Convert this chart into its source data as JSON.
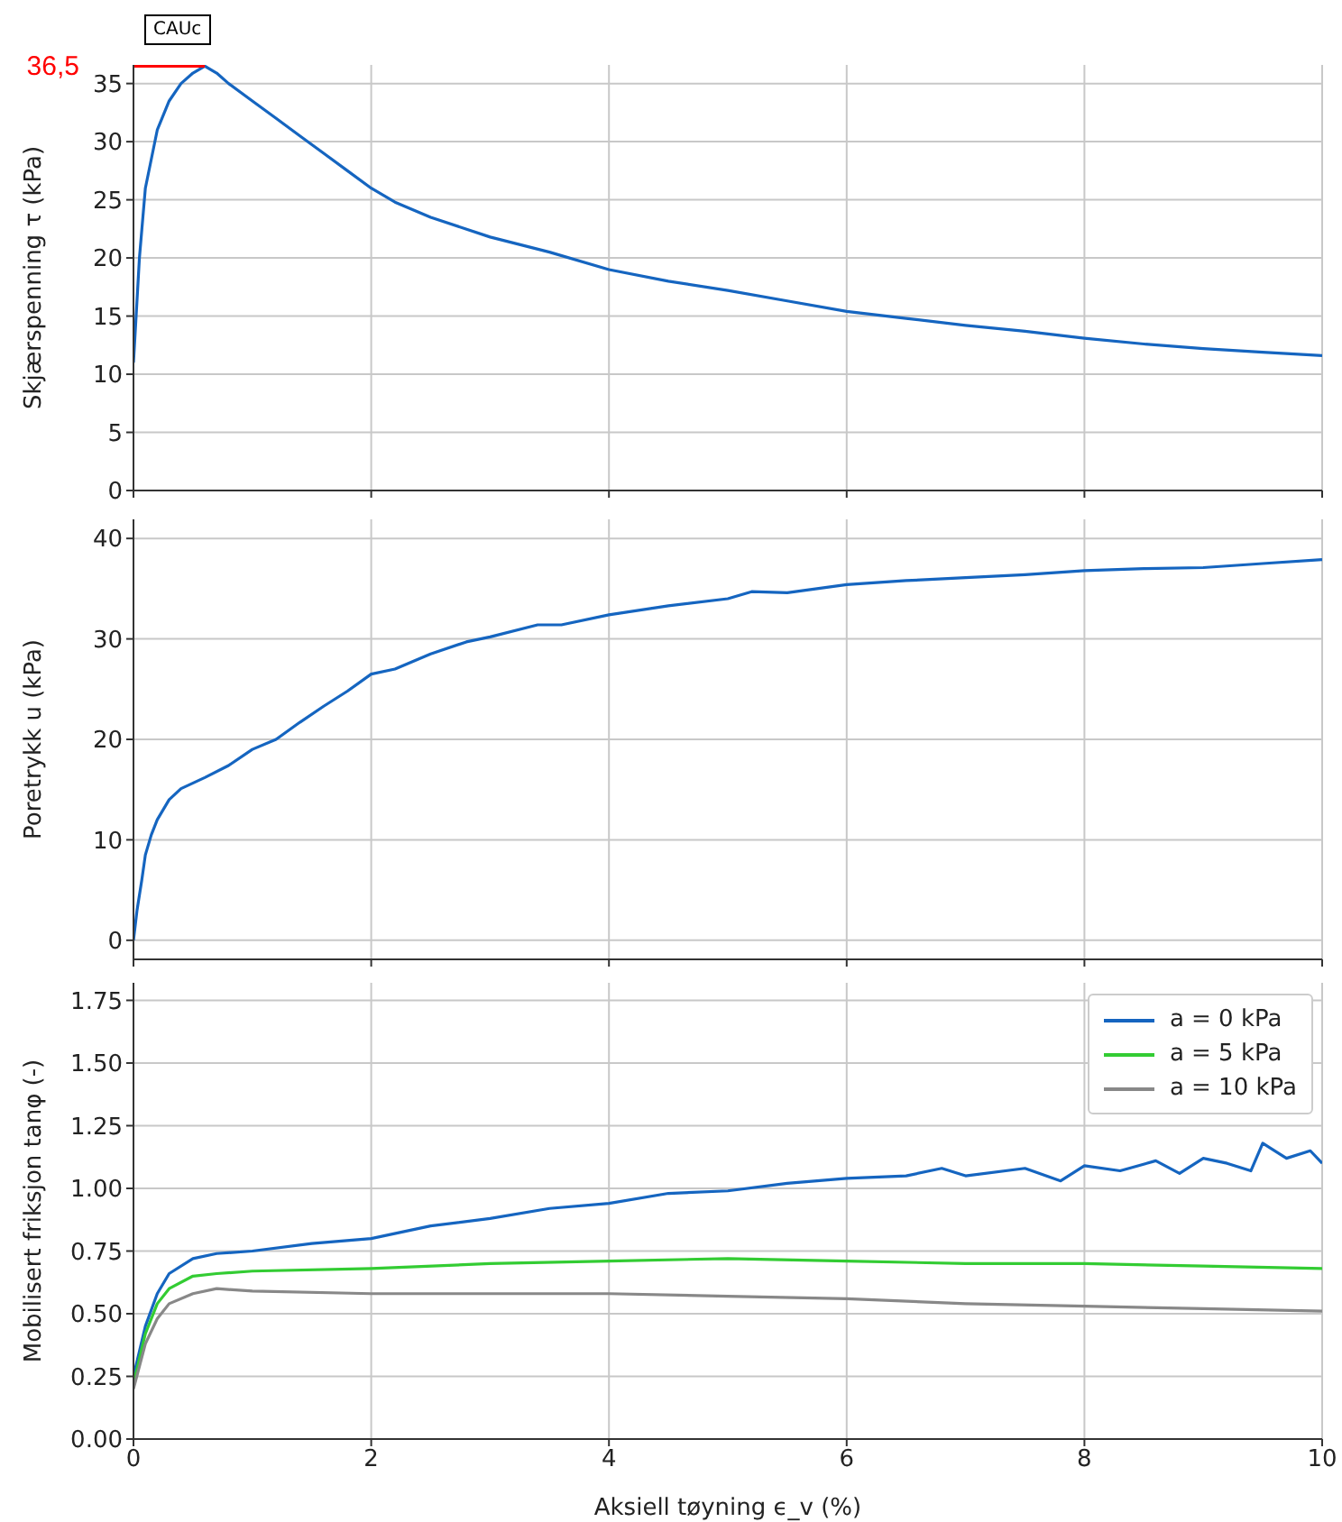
{
  "chart_data": [
    {
      "type": "line",
      "title": "CAUc",
      "ylabel": "Skjærspenning τ (kPa)",
      "xlim": [
        0,
        10
      ],
      "xticks": [
        0,
        2,
        4,
        6,
        8,
        10
      ],
      "ylim": [
        0,
        36.6
      ],
      "yticks": [
        0,
        5,
        10,
        15,
        20,
        25,
        30,
        35
      ],
      "grid": true,
      "tick_labels": "y",
      "series": [
        {
          "color": "#1565c0",
          "x": [
            0,
            0.05,
            0.1,
            0.2,
            0.3,
            0.4,
            0.5,
            0.6,
            0.7,
            0.8,
            1.0,
            1.2,
            1.4,
            1.6,
            1.8,
            2,
            2.2,
            2.5,
            3,
            3.5,
            4,
            4.5,
            5,
            5.5,
            6,
            6.5,
            7,
            7.5,
            8,
            8.5,
            9,
            9.5,
            10
          ],
          "values": [
            11,
            20,
            26,
            31,
            33.5,
            35,
            35.9,
            36.5,
            35.9,
            35,
            33.5,
            32,
            30.5,
            29,
            27.5,
            26,
            24.8,
            23.5,
            21.8,
            20.5,
            19,
            18,
            17.2,
            16.3,
            15.4,
            14.8,
            14.2,
            13.7,
            13.1,
            12.6,
            12.2,
            11.9,
            11.6
          ]
        },
        {
          "name": "36,5",
          "color": "#ff0000",
          "x": [
            0,
            0.6
          ],
          "values": [
            36.5,
            36.5
          ]
        }
      ]
    },
    {
      "type": "line",
      "ylabel": "Poretrykk u (kPa)",
      "xlim": [
        0,
        10
      ],
      "xticks": [
        0,
        2,
        4,
        6,
        8,
        10
      ],
      "ylim": [
        -1.9,
        41.9
      ],
      "yticks": [
        0,
        10,
        20,
        30,
        40
      ],
      "grid": true,
      "tick_labels": "y",
      "series": [
        {
          "color": "#1565c0",
          "x": [
            0,
            0.03,
            0.07,
            0.1,
            0.15,
            0.2,
            0.3,
            0.4,
            0.6,
            0.8,
            1,
            1.2,
            1.4,
            1.6,
            1.8,
            2,
            2.2,
            2.5,
            2.8,
            3,
            3.4,
            3.6,
            4,
            4.5,
            5,
            5.2,
            5.5,
            6,
            6.5,
            7,
            7.5,
            8,
            8.5,
            9,
            9.5,
            10
          ],
          "values": [
            0,
            3,
            6,
            8.5,
            10.5,
            12,
            14,
            15.1,
            16.2,
            17.4,
            19,
            20,
            21.7,
            23.3,
            24.8,
            26.5,
            27,
            28.5,
            29.7,
            30.2,
            31.4,
            31.4,
            32.4,
            33.3,
            34,
            34.7,
            34.6,
            35.4,
            35.8,
            36.1,
            36.4,
            36.8,
            37,
            37.1,
            37.5,
            37.9
          ]
        }
      ]
    },
    {
      "type": "line",
      "ylabel": "Mobilisert friksjon tanφ (-)",
      "xlabel": "Aksiell tøyning ϵ_v (%)",
      "xlim": [
        0,
        10
      ],
      "xticks": [
        0,
        2,
        4,
        6,
        8,
        10
      ],
      "ylim": [
        0,
        1.82
      ],
      "yticks": [
        {
          "value": 0,
          "label": "0.00"
        },
        {
          "value": 0.25,
          "label": "0.25"
        },
        {
          "value": 0.5,
          "label": "0.50"
        },
        {
          "value": 0.75,
          "label": "0.75"
        },
        {
          "value": 1,
          "label": "1.00"
        },
        {
          "value": 1.25,
          "label": "1.25"
        },
        {
          "value": 1.5,
          "label": "1.50"
        },
        {
          "value": 1.75,
          "label": "1.75"
        }
      ],
      "grid": true,
      "legend": "top right",
      "series": [
        {
          "name": "a = 0 kPa",
          "color": "#1565c0",
          "x": [
            0,
            0.1,
            0.2,
            0.3,
            0.5,
            0.7,
            1,
            1.5,
            2,
            2.5,
            3,
            3.5,
            4,
            4.5,
            5,
            5.5,
            6,
            6.5,
            6.8,
            7,
            7.5,
            7.8,
            8,
            8.3,
            8.6,
            8.8,
            9,
            9.2,
            9.4,
            9.5,
            9.7,
            9.9,
            10
          ],
          "values": [
            0.25,
            0.45,
            0.58,
            0.66,
            0.72,
            0.74,
            0.75,
            0.78,
            0.8,
            0.85,
            0.88,
            0.92,
            0.94,
            0.98,
            0.99,
            1.02,
            1.04,
            1.05,
            1.08,
            1.05,
            1.08,
            1.03,
            1.09,
            1.07,
            1.11,
            1.06,
            1.12,
            1.1,
            1.07,
            1.18,
            1.12,
            1.15,
            1.1
          ]
        },
        {
          "name": "a = 5 kPa",
          "color": "#33cc33",
          "x": [
            0,
            0.1,
            0.2,
            0.3,
            0.5,
            0.7,
            1,
            2,
            3,
            4,
            5,
            6,
            7,
            8,
            9,
            10
          ],
          "values": [
            0.22,
            0.42,
            0.54,
            0.6,
            0.65,
            0.66,
            0.67,
            0.68,
            0.7,
            0.71,
            0.72,
            0.71,
            0.7,
            0.7,
            0.69,
            0.68
          ]
        },
        {
          "name": "a = 10 kPa",
          "color": "#888888",
          "x": [
            0,
            0.1,
            0.2,
            0.3,
            0.5,
            0.7,
            1,
            2,
            3,
            4,
            5,
            6,
            7,
            8,
            9,
            10
          ],
          "values": [
            0.2,
            0.38,
            0.48,
            0.54,
            0.58,
            0.6,
            0.59,
            0.58,
            0.58,
            0.58,
            0.57,
            0.56,
            0.54,
            0.53,
            0.52,
            0.51
          ]
        }
      ]
    }
  ]
}
